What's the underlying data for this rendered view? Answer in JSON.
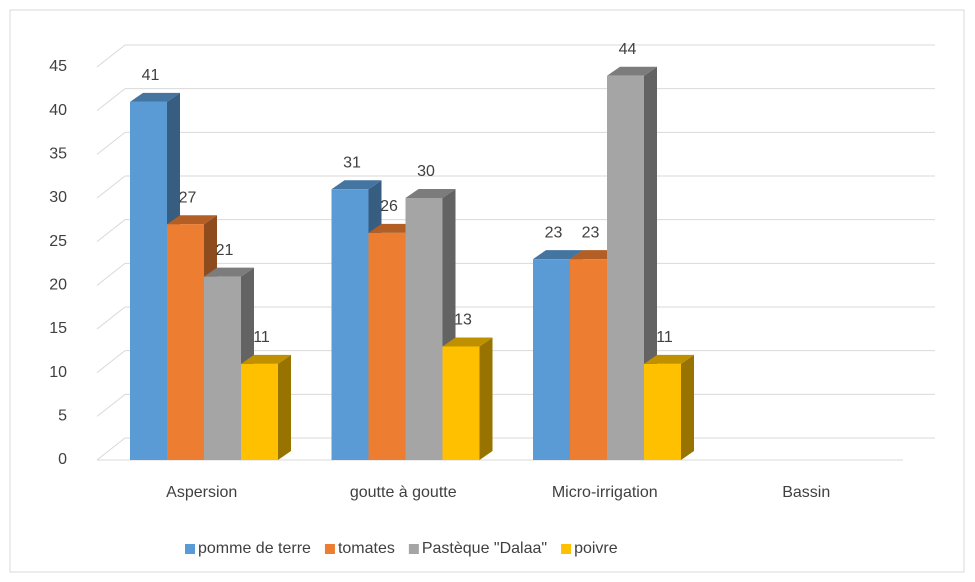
{
  "chart_data": {
    "type": "bar3d",
    "categories": [
      "Aspersion",
      "goutte à goutte",
      "Micro-irrigation",
      "Bassin"
    ],
    "series": [
      {
        "name": "pomme de terre",
        "color": "#5b9bd5",
        "values": [
          41,
          31,
          23,
          null
        ]
      },
      {
        "name": "tomates",
        "color": "#ed7d31",
        "values": [
          27,
          26,
          23,
          null
        ]
      },
      {
        "name": "Pastèque \"Dalaa\"",
        "color": "#a5a5a5",
        "values": [
          21,
          30,
          44,
          null
        ]
      },
      {
        "name": "poivre",
        "color": "#ffc000",
        "values": [
          11,
          13,
          11,
          null
        ]
      }
    ],
    "ylim": [
      0,
      45
    ],
    "yticks": [
      0,
      5,
      10,
      15,
      20,
      25,
      30,
      35,
      40,
      45
    ],
    "grid": true,
    "legend": "bottom"
  }
}
